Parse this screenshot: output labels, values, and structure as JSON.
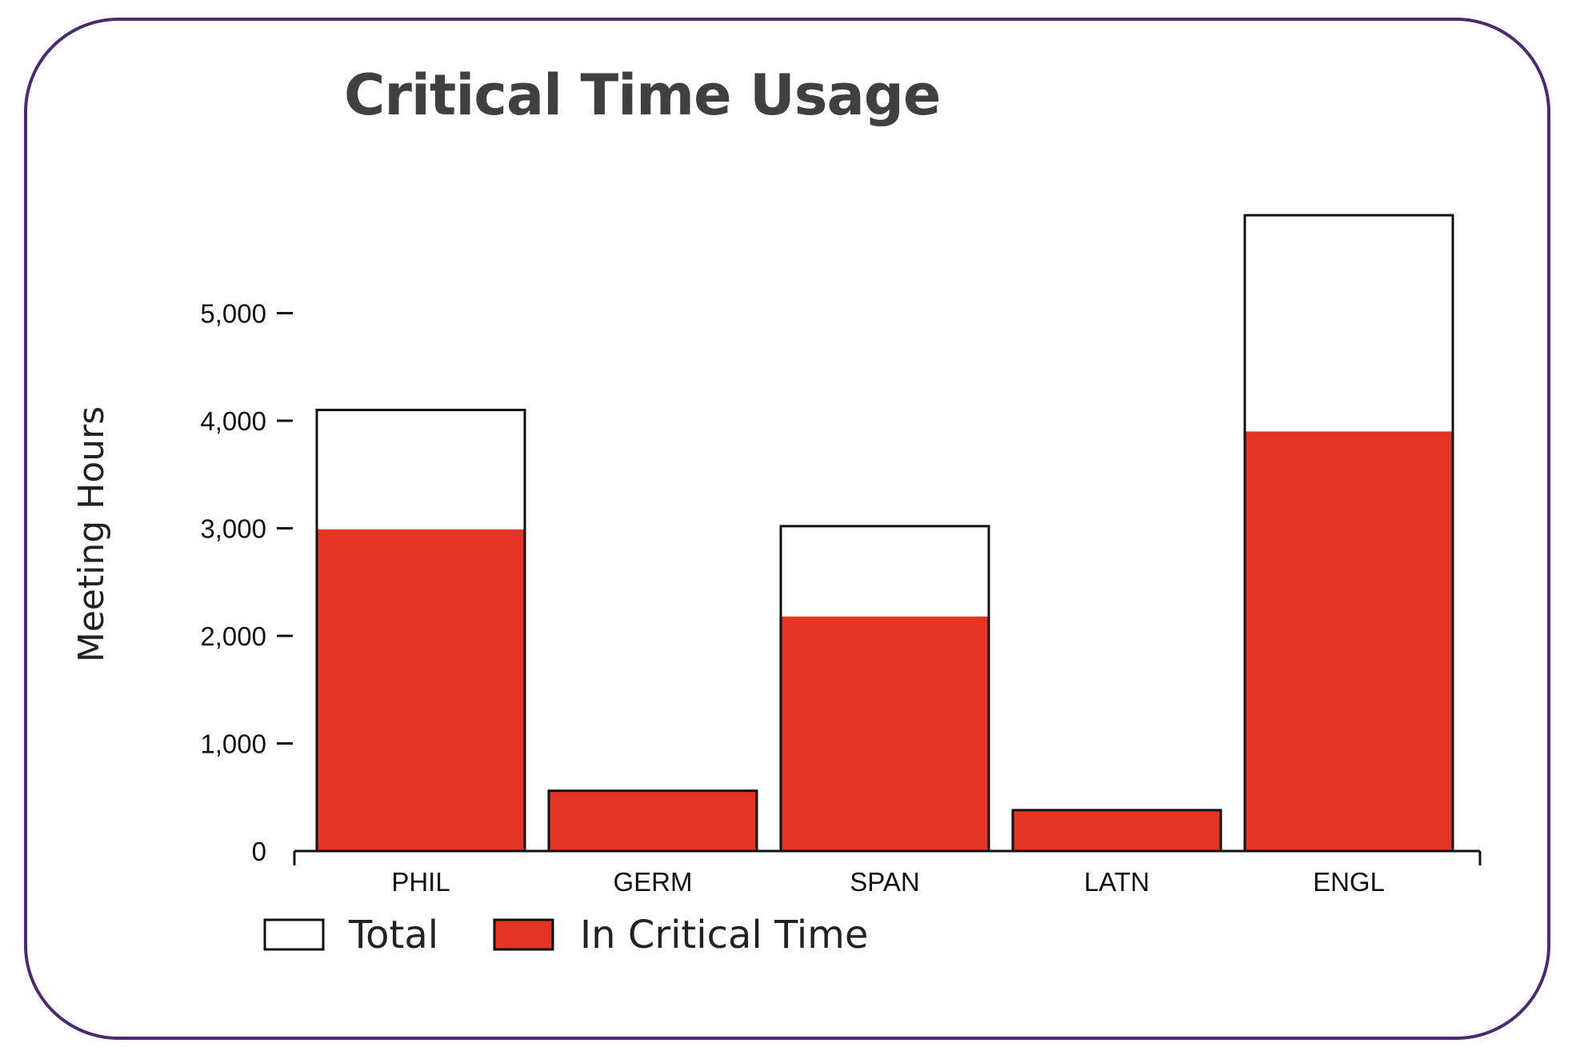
{
  "chart_data": {
    "type": "bar",
    "title": "Critical Time Usage",
    "xlabel": "",
    "ylabel": "Meeting Hours",
    "categories": [
      "PHIL",
      "GERM",
      "SPAN",
      "LATN",
      "ENGL"
    ],
    "series": [
      {
        "name": "Total",
        "values": [
          4100,
          560,
          3020,
          380,
          5910
        ]
      },
      {
        "name": "In Critical Time",
        "values": [
          2990,
          560,
          2180,
          380,
          3900
        ]
      }
    ],
    "y_ticks": [
      0,
      1000,
      2000,
      3000,
      4000,
      5000
    ],
    "y_tick_labels": [
      "0",
      "1,000",
      "2,000",
      "3,000",
      "4,000",
      "5,000"
    ],
    "ylim": [
      0,
      6000
    ],
    "grid": false,
    "legend_position": "bottom-left",
    "colors": {
      "total_fill": "#ffffff",
      "critical_fill": "#e33426",
      "outline": "#111111",
      "border": "#4b2a6e"
    }
  }
}
